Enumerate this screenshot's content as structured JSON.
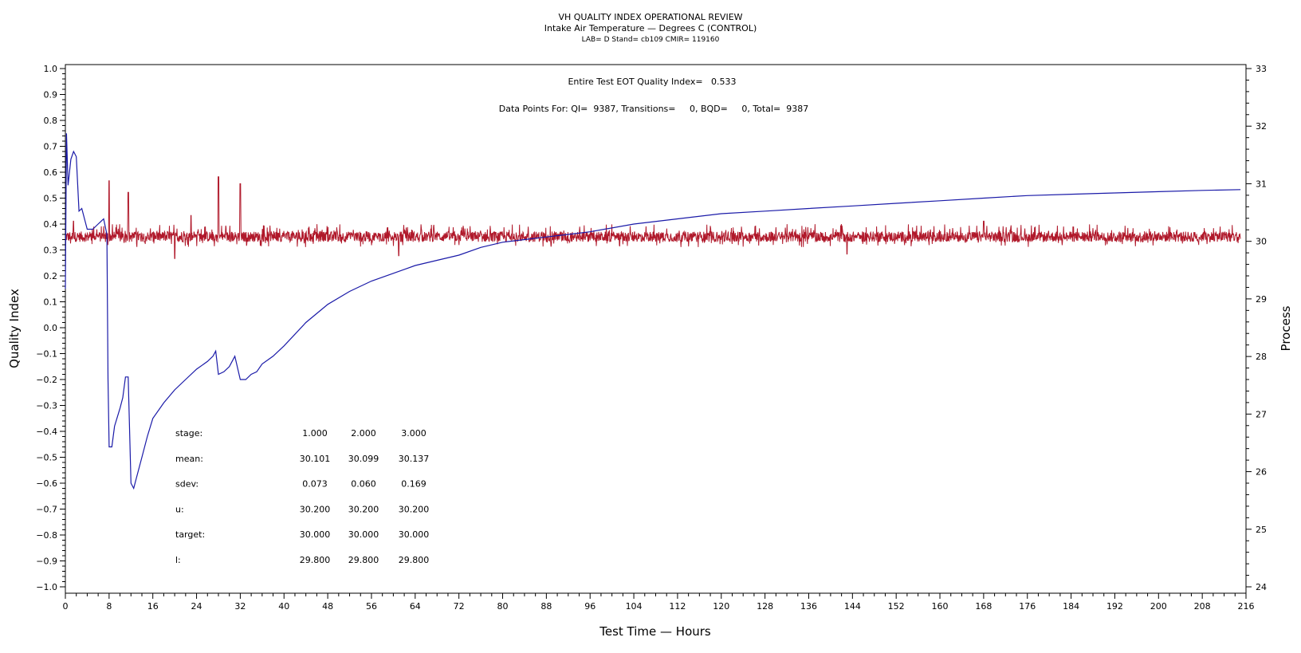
{
  "chart_data": {
    "type": "line",
    "title": "VH QUALITY INDEX OPERATIONAL REVIEW",
    "subtitle": "Intake Air Temperature — Degrees C (CONTROL)",
    "subtitle2": "LAB= D Stand= cb109 CMIR= 119160",
    "xlabel": "Test Time — Hours",
    "ylabel": "Quality Index",
    "y2label": "Process",
    "xlim": [
      0,
      216
    ],
    "ylim": [
      -1.0,
      1.0
    ],
    "y2lim": [
      24,
      33
    ],
    "x_ticks": [
      "0",
      "8",
      "16",
      "24",
      "32",
      "40",
      "48",
      "56",
      "64",
      "72",
      "80",
      "88",
      "96",
      "104",
      "112",
      "120",
      "128",
      "136",
      "144",
      "152",
      "160",
      "168",
      "176",
      "184",
      "192",
      "200",
      "208",
      "216"
    ],
    "y_ticks": [
      "1.0",
      "0.9",
      "0.8",
      "0.7",
      "0.6",
      "0.5",
      "0.4",
      "0.3",
      "0.2",
      "0.1",
      "0.0",
      "−0.1",
      "−0.2",
      "−0.3",
      "−0.4",
      "−0.5",
      "−0.6",
      "−0.7",
      "−0.8",
      "−0.9",
      "−1.0"
    ],
    "y2_ticks": [
      "33",
      "32",
      "31",
      "30",
      "29",
      "28",
      "27",
      "26",
      "25",
      "24"
    ],
    "annotations": {
      "quality_index": "Entire Test EOT Quality Index=   0.533",
      "data_points": "Data Points For: QI=  9387, Transitions=     0, BQD=     0, Total=  9387"
    },
    "stats_table": [
      {
        "label": "stage:",
        "values": [
          "1.000",
          "2.000",
          "3.000"
        ]
      },
      {
        "label": "mean:",
        "values": [
          "30.101",
          "30.099",
          "30.137"
        ]
      },
      {
        "label": "sdev:",
        "values": [
          "0.073",
          "0.060",
          "0.169"
        ]
      },
      {
        "label": "u:",
        "values": [
          "30.200",
          "30.200",
          "30.200"
        ]
      },
      {
        "label": "target:",
        "values": [
          "30.000",
          "30.000",
          "30.000"
        ]
      },
      {
        "label": "l:",
        "values": [
          "29.800",
          "29.800",
          "29.800"
        ]
      }
    ],
    "series": [
      {
        "axis": "left",
        "color": "#1a1aa8",
        "x": [
          0,
          0.2,
          0.5,
          1,
          1.5,
          2,
          2.5,
          3,
          4,
          5,
          6,
          7,
          7.6,
          7.8,
          8,
          8.5,
          9,
          10,
          10.5,
          11,
          11.5,
          12,
          12.5,
          13,
          14,
          15,
          16,
          18,
          20,
          22,
          24,
          26,
          27,
          27.5,
          28,
          29,
          30,
          31,
          32,
          33,
          34,
          35,
          36,
          38,
          40,
          44,
          48,
          52,
          56,
          60,
          64,
          68,
          72,
          76,
          80,
          84,
          88,
          92,
          96,
          104,
          112,
          120,
          128,
          136,
          144,
          152,
          160,
          168,
          176,
          184,
          192,
          200,
          208,
          215
        ],
        "values": [
          0.15,
          0.75,
          0.55,
          0.65,
          0.68,
          0.66,
          0.45,
          0.46,
          0.38,
          0.38,
          0.4,
          0.42,
          0.36,
          -0.2,
          -0.46,
          -0.46,
          -0.38,
          -0.31,
          -0.27,
          -0.19,
          -0.19,
          -0.6,
          -0.62,
          -0.58,
          -0.5,
          -0.42,
          -0.35,
          -0.29,
          -0.24,
          -0.2,
          -0.16,
          -0.13,
          -0.11,
          -0.09,
          -0.18,
          -0.17,
          -0.15,
          -0.11,
          -0.2,
          -0.2,
          -0.18,
          -0.17,
          -0.14,
          -0.11,
          -0.07,
          0.02,
          0.09,
          0.14,
          0.18,
          0.21,
          0.24,
          0.26,
          0.28,
          0.31,
          0.33,
          0.34,
          0.35,
          0.36,
          0.37,
          0.4,
          0.42,
          0.44,
          0.45,
          0.46,
          0.47,
          0.48,
          0.49,
          0.5,
          0.51,
          0.515,
          0.52,
          0.525,
          0.53,
          0.533
        ]
      },
      {
        "axis": "right",
        "color": "#b0182a",
        "name_shown": false,
        "baseline": 30.08,
        "x_range": [
          0,
          215
        ],
        "typical_band": [
          29.9,
          30.3
        ],
        "spikes": [
          {
            "x": 1.5,
            "value": 30.35
          },
          {
            "x": 8,
            "value": 31.05
          },
          {
            "x": 11.5,
            "value": 30.85
          },
          {
            "x": 23,
            "value": 30.45
          },
          {
            "x": 28,
            "value": 31.12
          },
          {
            "x": 32,
            "value": 31.0
          },
          {
            "x": 20,
            "value": 29.7
          },
          {
            "x": 61,
            "value": 29.75
          },
          {
            "x": 168,
            "value": 30.35
          },
          {
            "x": 143,
            "value": 29.78
          }
        ]
      }
    ]
  }
}
